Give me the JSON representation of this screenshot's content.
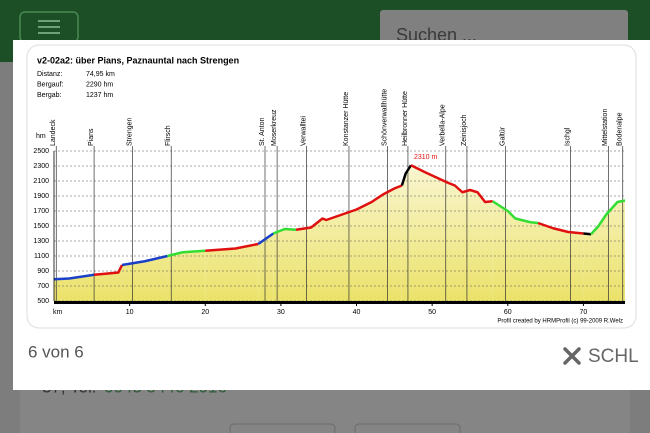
{
  "header": {
    "search_placeholder": "Suchen ..."
  },
  "background": {
    "address_prefix": "37, Tel.",
    "phone": "0043 5446 2016"
  },
  "lightbox": {
    "counter": "6 von 6",
    "close": "SCHL"
  },
  "chart_data": {
    "type": "line",
    "title": "v2-02a2: über Pians, Paznauntal nach Strengen",
    "info": [
      {
        "label": "Distanz:",
        "value": "74,95 km"
      },
      {
        "label": "Bergauf:",
        "value": "2290 hm"
      },
      {
        "label": "Bergab:",
        "value": "1237 hm"
      }
    ],
    "xlabel": "km",
    "ylabel": "hm",
    "xlim": [
      0,
      75.5
    ],
    "ylim": [
      500,
      2500
    ],
    "xticks": [
      10,
      20,
      30,
      40,
      50,
      60,
      70
    ],
    "yticks": [
      500,
      700,
      900,
      1100,
      1300,
      1500,
      1700,
      1900,
      2100,
      2300,
      2500
    ],
    "grid": true,
    "waypoints": [
      {
        "name": "Landeck",
        "x": 0.3
      },
      {
        "name": "Pians",
        "x": 5.3
      },
      {
        "name": "Strengen",
        "x": 10.4
      },
      {
        "name": "Flirsch",
        "x": 15.5
      },
      {
        "name": "St. Anton",
        "x": 27.9
      },
      {
        "name": "Moserkreuz",
        "x": 29.5
      },
      {
        "name": "Verwalltei",
        "x": 33.4
      },
      {
        "name": "Konstanzer Hütte",
        "x": 39
      },
      {
        "name": "Schönverwallhütte",
        "x": 44.1
      },
      {
        "name": "Heilbronner Hütte",
        "x": 46.8
      },
      {
        "name": "Verbella-Alpe",
        "x": 51.8
      },
      {
        "name": "Zeinisjoch",
        "x": 54.6
      },
      {
        "name": "Galtür",
        "x": 59.7
      },
      {
        "name": "Ischgl",
        "x": 68.3
      },
      {
        "name": "Mittelstation",
        "x": 73.3
      },
      {
        "name": "Bodenalpe",
        "x": 75.2
      }
    ],
    "series": [
      {
        "color": "#1a3fc8",
        "x": [
          0,
          2,
          4,
          5.3
        ],
        "values": [
          790,
          800,
          830,
          850
        ]
      },
      {
        "color": "#e01010",
        "x": [
          5.3,
          7.5,
          8.5,
          9
        ],
        "values": [
          850,
          870,
          880,
          980
        ]
      },
      {
        "color": "#1a3fc8",
        "x": [
          9,
          12,
          15
        ],
        "values": [
          980,
          1030,
          1100
        ]
      },
      {
        "color": "#33dd33",
        "x": [
          15,
          17,
          20
        ],
        "values": [
          1100,
          1150,
          1170
        ]
      },
      {
        "color": "#e01010",
        "x": [
          20,
          24,
          27
        ],
        "values": [
          1170,
          1200,
          1260
        ]
      },
      {
        "color": "#1a3fc8",
        "x": [
          27,
          29
        ],
        "values": [
          1260,
          1400
        ]
      },
      {
        "color": "#33dd33",
        "x": [
          29,
          30.5,
          32
        ],
        "values": [
          1400,
          1460,
          1450
        ]
      },
      {
        "color": "#e01010",
        "x": [
          32,
          34,
          35.5,
          36,
          38,
          40,
          42,
          43.5,
          45,
          46
        ],
        "values": [
          1450,
          1480,
          1600,
          1580,
          1650,
          1720,
          1820,
          1920,
          2000,
          2040
        ]
      },
      {
        "color": "#000000",
        "x": [
          46,
          46.5,
          47.2
        ],
        "values": [
          2040,
          2200,
          2310
        ]
      },
      {
        "color": "#e01010",
        "x": [
          47.2,
          49,
          50.5,
          52,
          53,
          54,
          55,
          56,
          57,
          58
        ],
        "values": [
          2310,
          2220,
          2150,
          2080,
          2040,
          1950,
          1980,
          1950,
          1820,
          1830
        ]
      },
      {
        "color": "#33dd33",
        "x": [
          58,
          60,
          61,
          63,
          64
        ],
        "values": [
          1830,
          1700,
          1600,
          1550,
          1540
        ]
      },
      {
        "color": "#e01010",
        "x": [
          64,
          66,
          68,
          70
        ],
        "values": [
          1540,
          1470,
          1420,
          1400
        ]
      },
      {
        "color": "#000000",
        "x": [
          70,
          71
        ],
        "values": [
          1400,
          1390
        ]
      },
      {
        "color": "#33dd33",
        "x": [
          71,
          72,
          73,
          74.5,
          75.5
        ],
        "values": [
          1390,
          1500,
          1650,
          1820,
          1840
        ]
      }
    ],
    "annotations": [
      {
        "text": "2310 m",
        "x": 47.2,
        "y": 2310,
        "color": "#e01010"
      }
    ],
    "credit": "Profil created by HRMProfil (c) 99-2009 R.Welz"
  }
}
